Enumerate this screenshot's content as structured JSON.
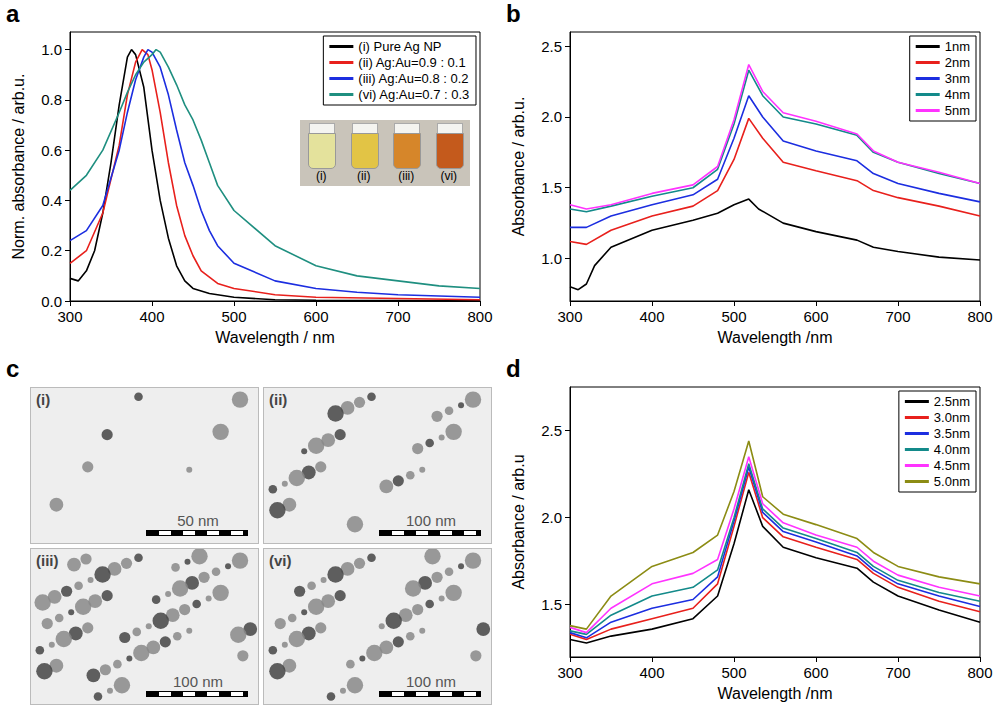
{
  "chart_data": [
    {
      "panel": "a",
      "type": "line",
      "x_label": "Wavelength / nm",
      "y_label": "Norm. absorbance / arb.u.",
      "xlim": [
        300,
        800
      ],
      "xticks": [
        300,
        400,
        500,
        600,
        700,
        800
      ],
      "ylim": [
        0,
        1.07
      ],
      "yticks": [
        {
          "value": 0,
          "label": "0.0"
        },
        0.2,
        0.4,
        0.6,
        0.8,
        {
          "value": 1,
          "label": "1.0"
        }
      ],
      "grid": false,
      "legend": "top-right",
      "inset": {
        "labels": [
          "(i)",
          "(ii)",
          "(iii)",
          "(vi)"
        ],
        "colors": [
          "#e4e29c",
          "#e2c445",
          "#d6862a",
          "#c45a1c"
        ]
      },
      "series": [
        {
          "name": "(i) Pure Ag NP",
          "color": "#000000",
          "x": [
            300,
            310,
            320,
            330,
            340,
            350,
            360,
            370,
            375,
            380,
            390,
            400,
            410,
            420,
            430,
            440,
            450,
            470,
            500,
            550,
            600,
            700,
            800
          ],
          "values": [
            0.09,
            0.08,
            0.12,
            0.2,
            0.35,
            0.55,
            0.78,
            0.97,
            1.0,
            0.98,
            0.85,
            0.6,
            0.4,
            0.25,
            0.14,
            0.08,
            0.05,
            0.03,
            0.015,
            0.005,
            0.003,
            0.002,
            0.001
          ]
        },
        {
          "name": "(ii) Ag:Au=0.9 : 0.1",
          "color": "#e8201c",
          "x": [
            300,
            320,
            340,
            360,
            370,
            380,
            388,
            395,
            400,
            410,
            420,
            430,
            440,
            450,
            460,
            480,
            500,
            550,
            600,
            700,
            800
          ],
          "values": [
            0.15,
            0.2,
            0.35,
            0.62,
            0.82,
            0.95,
            1.0,
            0.98,
            0.92,
            0.75,
            0.55,
            0.38,
            0.26,
            0.18,
            0.12,
            0.07,
            0.05,
            0.025,
            0.015,
            0.01,
            0.005
          ]
        },
        {
          "name": "(iii) Ag:Au=0.8 : 0.2",
          "color": "#1c2ee0",
          "x": [
            300,
            320,
            340,
            360,
            370,
            380,
            390,
            395,
            400,
            410,
            420,
            430,
            440,
            450,
            460,
            470,
            480,
            500,
            550,
            600,
            650,
            700,
            800
          ],
          "values": [
            0.24,
            0.28,
            0.38,
            0.6,
            0.75,
            0.88,
            0.97,
            1.0,
            0.99,
            0.93,
            0.82,
            0.68,
            0.55,
            0.46,
            0.36,
            0.28,
            0.22,
            0.15,
            0.08,
            0.05,
            0.035,
            0.025,
            0.015
          ]
        },
        {
          "name": "(vi) Ag:Au=0.7 : 0.3",
          "color": "#1f8f80",
          "x": [
            300,
            320,
            340,
            360,
            370,
            380,
            390,
            400,
            405,
            410,
            420,
            430,
            440,
            450,
            460,
            470,
            480,
            500,
            550,
            600,
            650,
            700,
            750,
            800
          ],
          "values": [
            0.44,
            0.5,
            0.6,
            0.75,
            0.83,
            0.9,
            0.95,
            0.98,
            1.0,
            0.99,
            0.93,
            0.86,
            0.78,
            0.72,
            0.64,
            0.55,
            0.46,
            0.36,
            0.22,
            0.14,
            0.1,
            0.08,
            0.06,
            0.05
          ]
        }
      ]
    },
    {
      "panel": "b",
      "type": "line",
      "x_label": "Wavelength /nm",
      "y_label": "Absorbance / arb.u.",
      "xlim": [
        300,
        800
      ],
      "xticks": [
        300,
        400,
        500,
        600,
        700,
        800
      ],
      "ylim": [
        0.7,
        2.6
      ],
      "yticks": [
        {
          "value": 1,
          "label": "1.0"
        },
        1.5,
        {
          "value": 2,
          "label": "2.0"
        },
        2.5
      ],
      "grid": false,
      "legend": "top-right",
      "series": [
        {
          "name": "1nm",
          "color": "#000000",
          "x": [
            300,
            310,
            320,
            330,
            350,
            400,
            450,
            480,
            500,
            518,
            530,
            560,
            600,
            650,
            670,
            700,
            750,
            800
          ],
          "values": [
            0.8,
            0.78,
            0.82,
            0.95,
            1.08,
            1.2,
            1.27,
            1.32,
            1.38,
            1.42,
            1.35,
            1.25,
            1.19,
            1.13,
            1.08,
            1.05,
            1.01,
            0.99
          ]
        },
        {
          "name": "2nm",
          "color": "#e8201c",
          "x": [
            300,
            320,
            350,
            400,
            450,
            480,
            500,
            518,
            535,
            560,
            600,
            650,
            670,
            700,
            750,
            800
          ],
          "values": [
            1.12,
            1.1,
            1.2,
            1.3,
            1.37,
            1.48,
            1.7,
            1.99,
            1.85,
            1.68,
            1.62,
            1.55,
            1.48,
            1.43,
            1.37,
            1.3
          ]
        },
        {
          "name": "3nm",
          "color": "#1c2ee0",
          "x": [
            300,
            320,
            350,
            400,
            450,
            480,
            500,
            518,
            535,
            560,
            600,
            650,
            670,
            700,
            750,
            800
          ],
          "values": [
            1.22,
            1.22,
            1.3,
            1.38,
            1.45,
            1.56,
            1.85,
            2.15,
            2.0,
            1.83,
            1.76,
            1.69,
            1.6,
            1.53,
            1.46,
            1.4
          ]
        },
        {
          "name": "4nm",
          "color": "#138a8a",
          "x": [
            300,
            320,
            350,
            400,
            450,
            480,
            500,
            518,
            535,
            560,
            600,
            650,
            670,
            700,
            750,
            800
          ],
          "values": [
            1.35,
            1.33,
            1.37,
            1.44,
            1.5,
            1.63,
            1.95,
            2.33,
            2.15,
            2.0,
            1.95,
            1.87,
            1.75,
            1.68,
            1.6,
            1.53
          ]
        },
        {
          "name": "5nm",
          "color": "#ff33ff",
          "x": [
            300,
            320,
            350,
            400,
            450,
            480,
            500,
            518,
            535,
            560,
            600,
            650,
            670,
            700,
            750,
            800
          ],
          "values": [
            1.38,
            1.35,
            1.38,
            1.46,
            1.52,
            1.65,
            1.98,
            2.37,
            2.18,
            2.03,
            1.97,
            1.88,
            1.76,
            1.68,
            1.61,
            1.53
          ]
        }
      ]
    },
    {
      "panel": "d",
      "type": "line",
      "x_label": "Wavelength /nm",
      "y_label": "Absorbance / arb.u",
      "xlim": [
        300,
        800
      ],
      "xticks": [
        300,
        400,
        500,
        600,
        700,
        800
      ],
      "ylim": [
        1.2,
        2.75
      ],
      "yticks": [
        1.5,
        {
          "value": 2,
          "label": "2.0"
        },
        2.5
      ],
      "grid": false,
      "legend": "top-right",
      "series": [
        {
          "name": "2.5nm",
          "color": "#000000",
          "x": [
            300,
            320,
            350,
            400,
            450,
            480,
            500,
            518,
            535,
            560,
            600,
            650,
            670,
            700,
            750,
            800
          ],
          "values": [
            1.3,
            1.28,
            1.32,
            1.36,
            1.42,
            1.55,
            1.85,
            2.16,
            1.95,
            1.83,
            1.77,
            1.71,
            1.63,
            1.55,
            1.47,
            1.4
          ]
        },
        {
          "name": "3.0nm",
          "color": "#e8201c",
          "x": [
            300,
            320,
            350,
            400,
            450,
            480,
            500,
            518,
            535,
            560,
            600,
            650,
            670,
            700,
            750,
            800
          ],
          "values": [
            1.33,
            1.3,
            1.36,
            1.42,
            1.48,
            1.62,
            1.95,
            2.26,
            2.0,
            1.89,
            1.83,
            1.76,
            1.68,
            1.6,
            1.52,
            1.46
          ]
        },
        {
          "name": "3.5nm",
          "color": "#1c2ee0",
          "x": [
            300,
            320,
            350,
            400,
            450,
            480,
            500,
            518,
            535,
            560,
            600,
            650,
            670,
            700,
            750,
            800
          ],
          "values": [
            1.34,
            1.31,
            1.4,
            1.48,
            1.53,
            1.66,
            1.98,
            2.29,
            2.03,
            1.92,
            1.86,
            1.78,
            1.7,
            1.62,
            1.55,
            1.49
          ]
        },
        {
          "name": "4.0nm",
          "color": "#138a8a",
          "x": [
            300,
            320,
            350,
            400,
            450,
            480,
            500,
            518,
            535,
            560,
            600,
            650,
            670,
            700,
            750,
            800
          ],
          "values": [
            1.35,
            1.33,
            1.44,
            1.55,
            1.6,
            1.7,
            2.0,
            2.31,
            2.05,
            1.94,
            1.88,
            1.8,
            1.72,
            1.64,
            1.57,
            1.52
          ]
        },
        {
          "name": "4.5nm",
          "color": "#ff33ff",
          "x": [
            300,
            320,
            350,
            400,
            450,
            480,
            500,
            518,
            535,
            560,
            600,
            650,
            670,
            700,
            750,
            800
          ],
          "values": [
            1.37,
            1.34,
            1.48,
            1.62,
            1.68,
            1.76,
            2.05,
            2.35,
            2.08,
            1.97,
            1.9,
            1.83,
            1.75,
            1.67,
            1.6,
            1.55
          ]
        },
        {
          "name": "5.0nm",
          "color": "#8c8c14",
          "x": [
            300,
            320,
            350,
            400,
            450,
            480,
            500,
            518,
            535,
            560,
            600,
            650,
            670,
            700,
            750,
            800
          ],
          "values": [
            1.38,
            1.36,
            1.55,
            1.72,
            1.8,
            1.9,
            2.15,
            2.44,
            2.12,
            2.02,
            1.96,
            1.88,
            1.8,
            1.72,
            1.66,
            1.62
          ]
        }
      ]
    }
  ],
  "image_panel": {
    "panel": "c",
    "tiles": [
      {
        "label": "(i)",
        "scale_bar": "50 nm"
      },
      {
        "label": "(ii)",
        "scale_bar": "100 nm"
      },
      {
        "label": "(iii)",
        "scale_bar": "100 nm"
      },
      {
        "label": "(vi)",
        "scale_bar": "100 nm"
      }
    ]
  }
}
